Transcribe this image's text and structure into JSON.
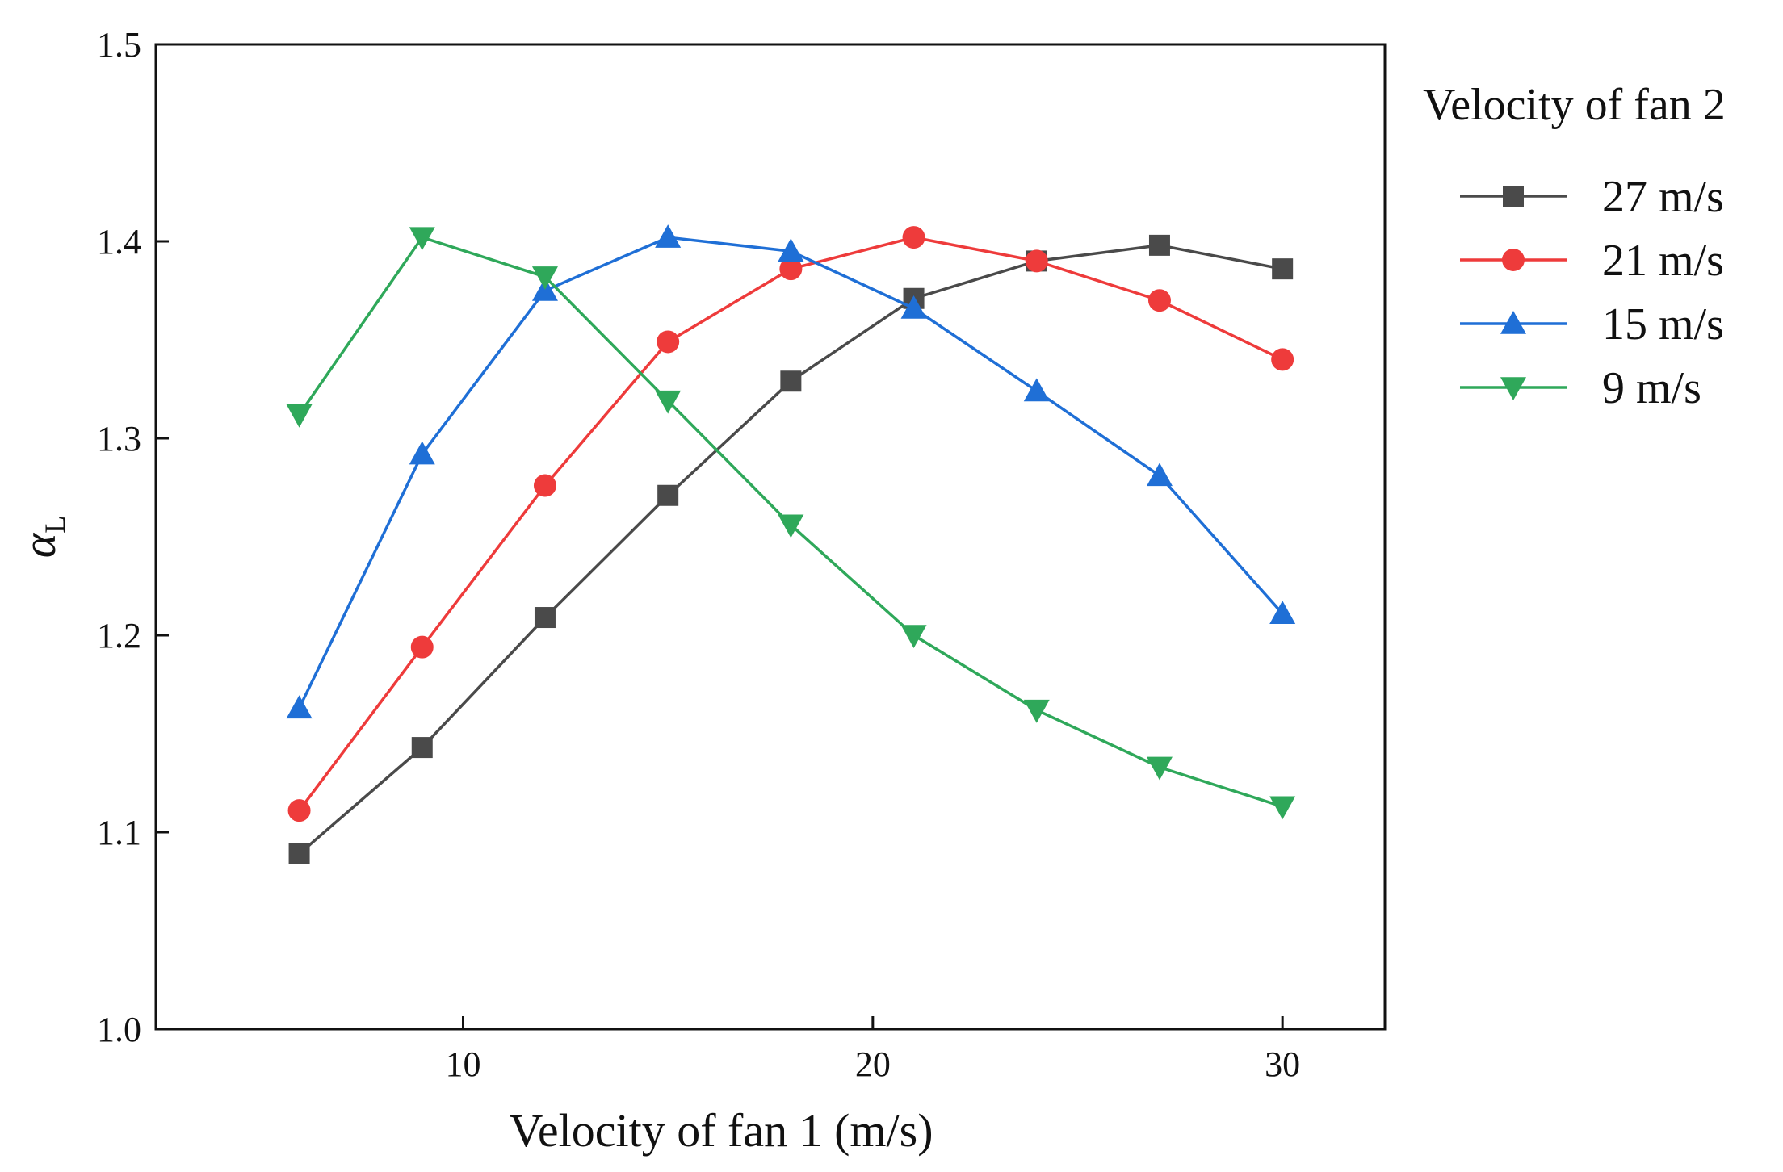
{
  "chart_data": {
    "type": "line",
    "title": "",
    "xlabel": "Velocity of fan 1  (m/s)",
    "ylabel_symbol": "α",
    "ylabel_subscript": "L",
    "xlim": [
      2.5,
      32.5
    ],
    "ylim": [
      1.0,
      1.5
    ],
    "xticks": [
      10,
      20,
      30
    ],
    "xtick_labels": [
      "10",
      "20",
      "30"
    ],
    "yticks": [
      1.0,
      1.1,
      1.2,
      1.3,
      1.4,
      1.5
    ],
    "ytick_labels": [
      "1.0",
      "1.1",
      "1.2",
      "1.3",
      "1.4",
      "1.5"
    ],
    "grid": false,
    "legend": {
      "title": "Velocity of fan 2",
      "position": "outside-right-top"
    },
    "x": [
      6,
      9,
      12,
      15,
      18,
      21,
      24,
      27,
      30
    ],
    "series": [
      {
        "name": "27 m/s",
        "color": "#4a4a4a",
        "marker": "square",
        "values": [
          1.089,
          1.143,
          1.209,
          1.271,
          1.329,
          1.371,
          1.39,
          1.398,
          1.386
        ]
      },
      {
        "name": "21 m/s",
        "color": "#ee3b3b",
        "marker": "circle",
        "values": [
          1.111,
          1.194,
          1.276,
          1.349,
          1.386,
          1.402,
          1.39,
          1.37,
          1.34
        ]
      },
      {
        "name": "15 m/s",
        "color": "#1f6fd6",
        "marker": "triangle-up",
        "values": [
          1.163,
          1.292,
          1.375,
          1.402,
          1.395,
          1.366,
          1.324,
          1.281,
          1.211
        ]
      },
      {
        "name": "9 m/s",
        "color": "#2fa85a",
        "marker": "triangle-down",
        "values": [
          1.312,
          1.402,
          1.382,
          1.319,
          1.256,
          1.2,
          1.162,
          1.133,
          1.113
        ]
      }
    ]
  }
}
